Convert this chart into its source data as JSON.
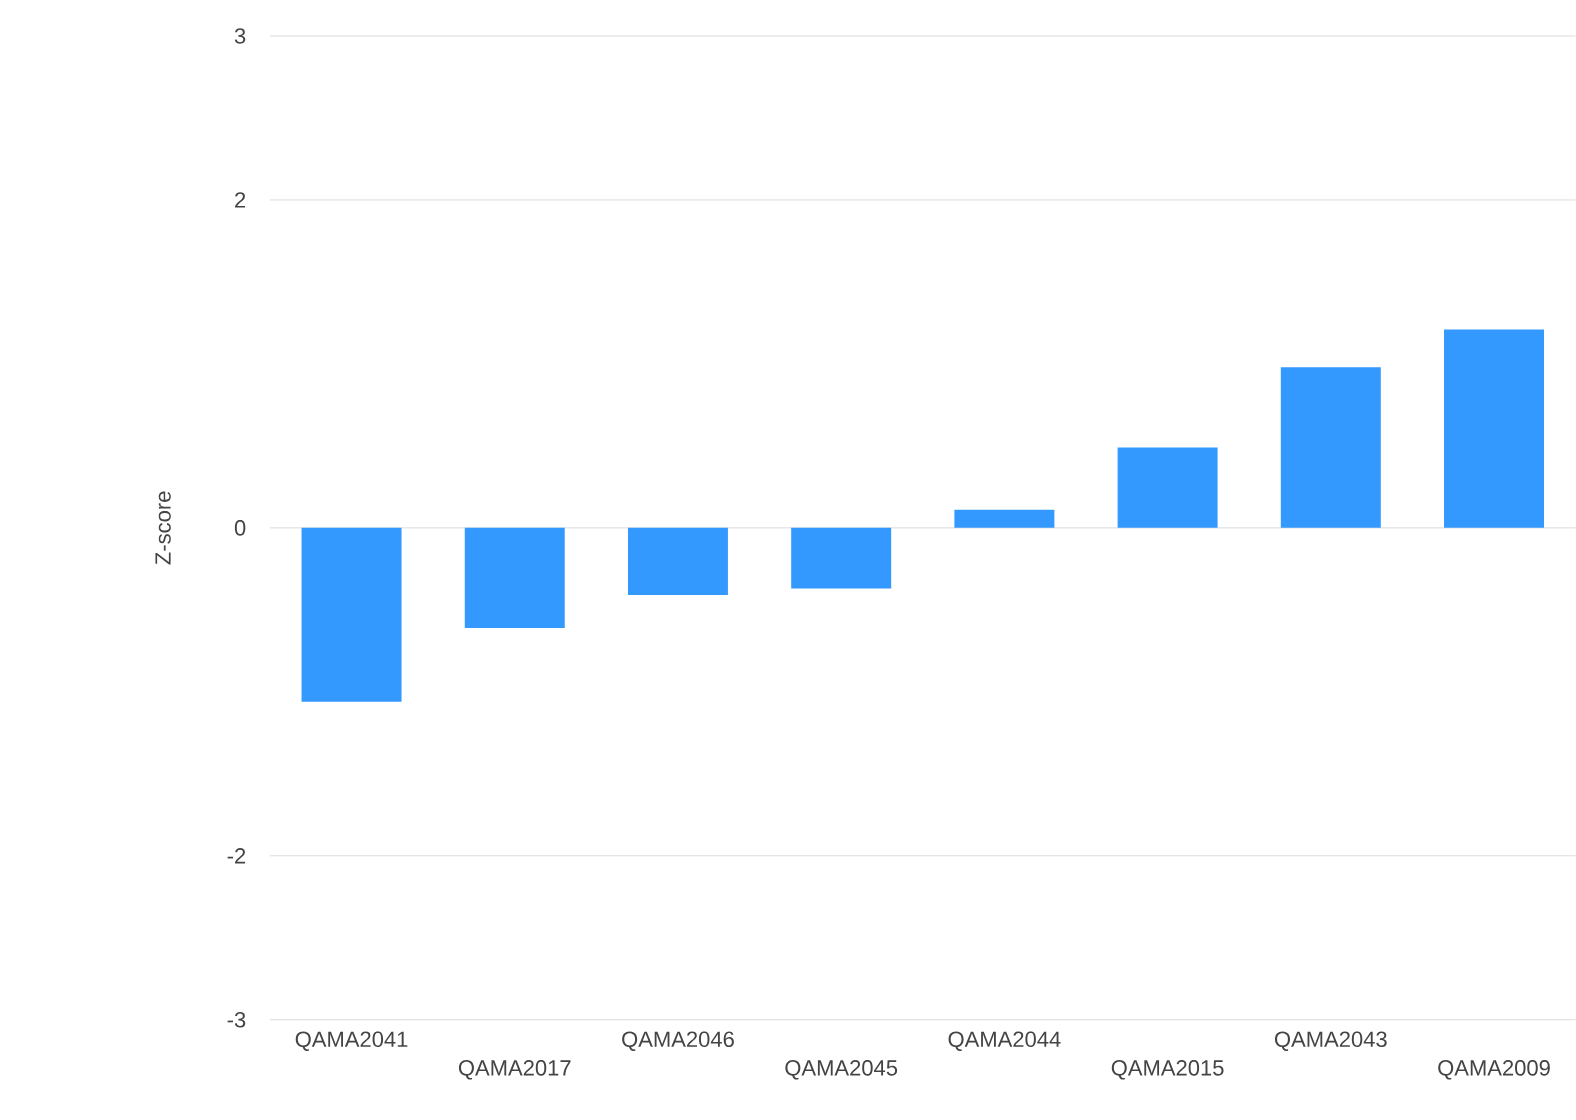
{
  "chart_data": {
    "type": "bar",
    "ylabel": "Z-score",
    "categories": [
      "QAMA2041",
      "QAMA2017",
      "QAMA2046",
      "QAMA2045",
      "QAMA2044",
      "QAMA2015",
      "QAMA2043",
      "QAMA2009"
    ],
    "values": [
      -1.06,
      -0.61,
      -0.41,
      -0.37,
      0.11,
      0.49,
      0.98,
      1.21
    ],
    "color": "#3399ff",
    "ylim": [
      -3,
      3
    ],
    "yticks": [
      -3,
      -2,
      0,
      2,
      3
    ],
    "grid": "y"
  }
}
